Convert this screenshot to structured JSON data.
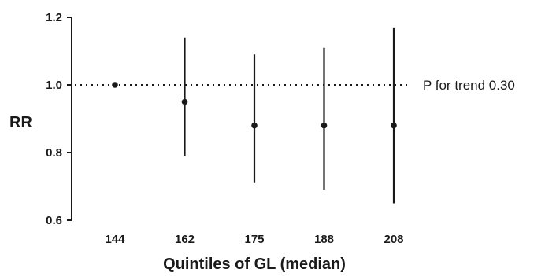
{
  "chart_data": {
    "type": "scatter",
    "title": "",
    "xlabel": "Quintiles of GL (median)",
    "ylabel": "RR",
    "categories": [
      "144",
      "162",
      "175",
      "188",
      "208"
    ],
    "y_ticks": [
      "0.6",
      "0.8",
      "1.0",
      "1.2"
    ],
    "ylim": [
      0.6,
      1.2
    ],
    "series": [
      {
        "values": [
          1.0,
          0.95,
          0.88,
          0.88,
          0.88
        ],
        "ci_lower": [
          1.0,
          0.79,
          0.71,
          0.69,
          0.65
        ],
        "ci_upper": [
          1.0,
          1.14,
          1.09,
          1.11,
          1.17
        ]
      }
    ],
    "reference_line": 1.0,
    "annotation": "P for trend 0.30",
    "grid": false,
    "colors": {
      "marks": "#1a1a1a"
    }
  }
}
